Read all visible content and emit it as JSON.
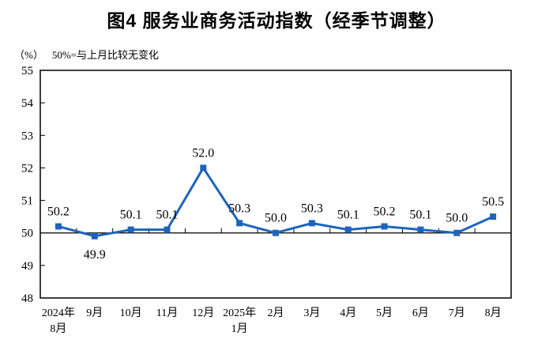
{
  "title": "图4 服务业商务活动指数（经季节调整）",
  "subtitle": {
    "unit": "（%）",
    "note": "50%=与上月比较无变化"
  },
  "chart_data": {
    "type": "line",
    "title": "图4 服务业商务活动指数（经季节调整）",
    "unit": "%",
    "baseline_note": "50%=与上月比较无变化",
    "categories": [
      "2024年8月",
      "9月",
      "10月",
      "11月",
      "12月",
      "2025年1月",
      "2月",
      "3月",
      "4月",
      "5月",
      "6月",
      "7月",
      "8月"
    ],
    "category_lines": [
      [
        "2024年",
        "8月"
      ],
      [
        "9月"
      ],
      [
        "10月"
      ],
      [
        "11月"
      ],
      [
        "12月"
      ],
      [
        "2025年",
        "1月"
      ],
      [
        "2月"
      ],
      [
        "3月"
      ],
      [
        "4月"
      ],
      [
        "5月"
      ],
      [
        "6月"
      ],
      [
        "7月"
      ],
      [
        "8月"
      ]
    ],
    "values": [
      50.2,
      49.9,
      50.1,
      50.1,
      52.0,
      50.3,
      50.0,
      50.3,
      50.1,
      50.2,
      50.1,
      50.0,
      50.5
    ],
    "point_labels": [
      "50.2",
      "49.9",
      "50.1",
      "50.1",
      "52.0",
      "50.3",
      "50.0",
      "50.3",
      "50.1",
      "50.2",
      "50.1",
      "50.0",
      "50.5"
    ],
    "labels_below_indices": [
      1
    ],
    "ylim": [
      48,
      55
    ],
    "yticks": [
      48,
      49,
      50,
      51,
      52,
      53,
      54,
      55
    ],
    "baseline_value": 50,
    "grid": false,
    "legend": "none",
    "marker": "square",
    "colors": {
      "line": "#1e64bc",
      "axis": "#000000",
      "text": "#000000"
    }
  }
}
